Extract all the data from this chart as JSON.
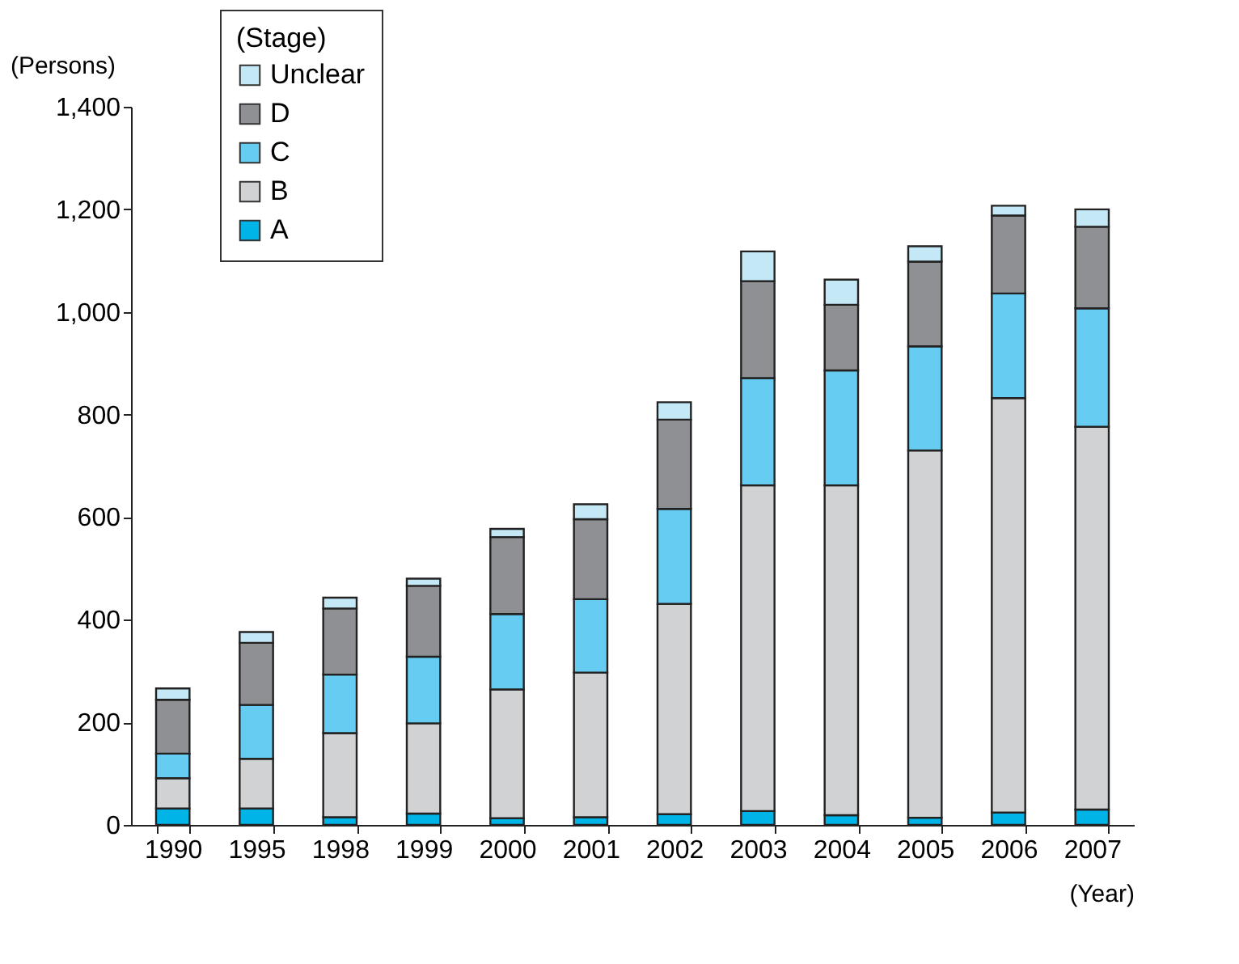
{
  "chart_data": {
    "type": "bar",
    "stacked": true,
    "xlabel": "(Year)",
    "ylabel": "(Persons)",
    "legend_title": "(Stage)",
    "legend": "top left",
    "grid": false,
    "categories": [
      "1990",
      "1995",
      "1998",
      "1999",
      "2000",
      "2001",
      "2002",
      "2003",
      "2004",
      "2005",
      "2006",
      "2007"
    ],
    "ylim": [
      0,
      1400
    ],
    "yticks": [
      0,
      {
        "value": 200,
        "label": "200"
      },
      {
        "value": 400,
        "label": "400"
      },
      {
        "value": 600,
        "label": "600"
      },
      {
        "value": 800,
        "label": "800"
      },
      {
        "value": 1000,
        "label": "1,000"
      },
      {
        "value": 1200,
        "label": "1,200"
      },
      {
        "value": 1400,
        "label": "1,400"
      }
    ],
    "series": [
      {
        "name": "A",
        "color": "#00b4e8",
        "values": [
          32,
          32,
          15,
          22,
          13,
          15,
          21,
          27,
          19,
          14,
          24,
          30
        ]
      },
      {
        "name": "B",
        "color": "#d0d2d4",
        "values": [
          59,
          97,
          164,
          176,
          251,
          282,
          410,
          635,
          643,
          716,
          808,
          746
        ]
      },
      {
        "name": "C",
        "color": "#66ccf2",
        "values": [
          48,
          105,
          114,
          130,
          147,
          143,
          185,
          209,
          224,
          203,
          204,
          231
        ]
      },
      {
        "name": "D",
        "color": "#8f9094",
        "values": [
          105,
          121,
          129,
          138,
          150,
          156,
          174,
          189,
          128,
          165,
          152,
          159
        ]
      },
      {
        "name": "Unclear",
        "color": "#c5e8f7",
        "values": [
          22,
          21,
          21,
          14,
          16,
          29,
          34,
          58,
          49,
          30,
          19,
          34
        ]
      }
    ]
  }
}
